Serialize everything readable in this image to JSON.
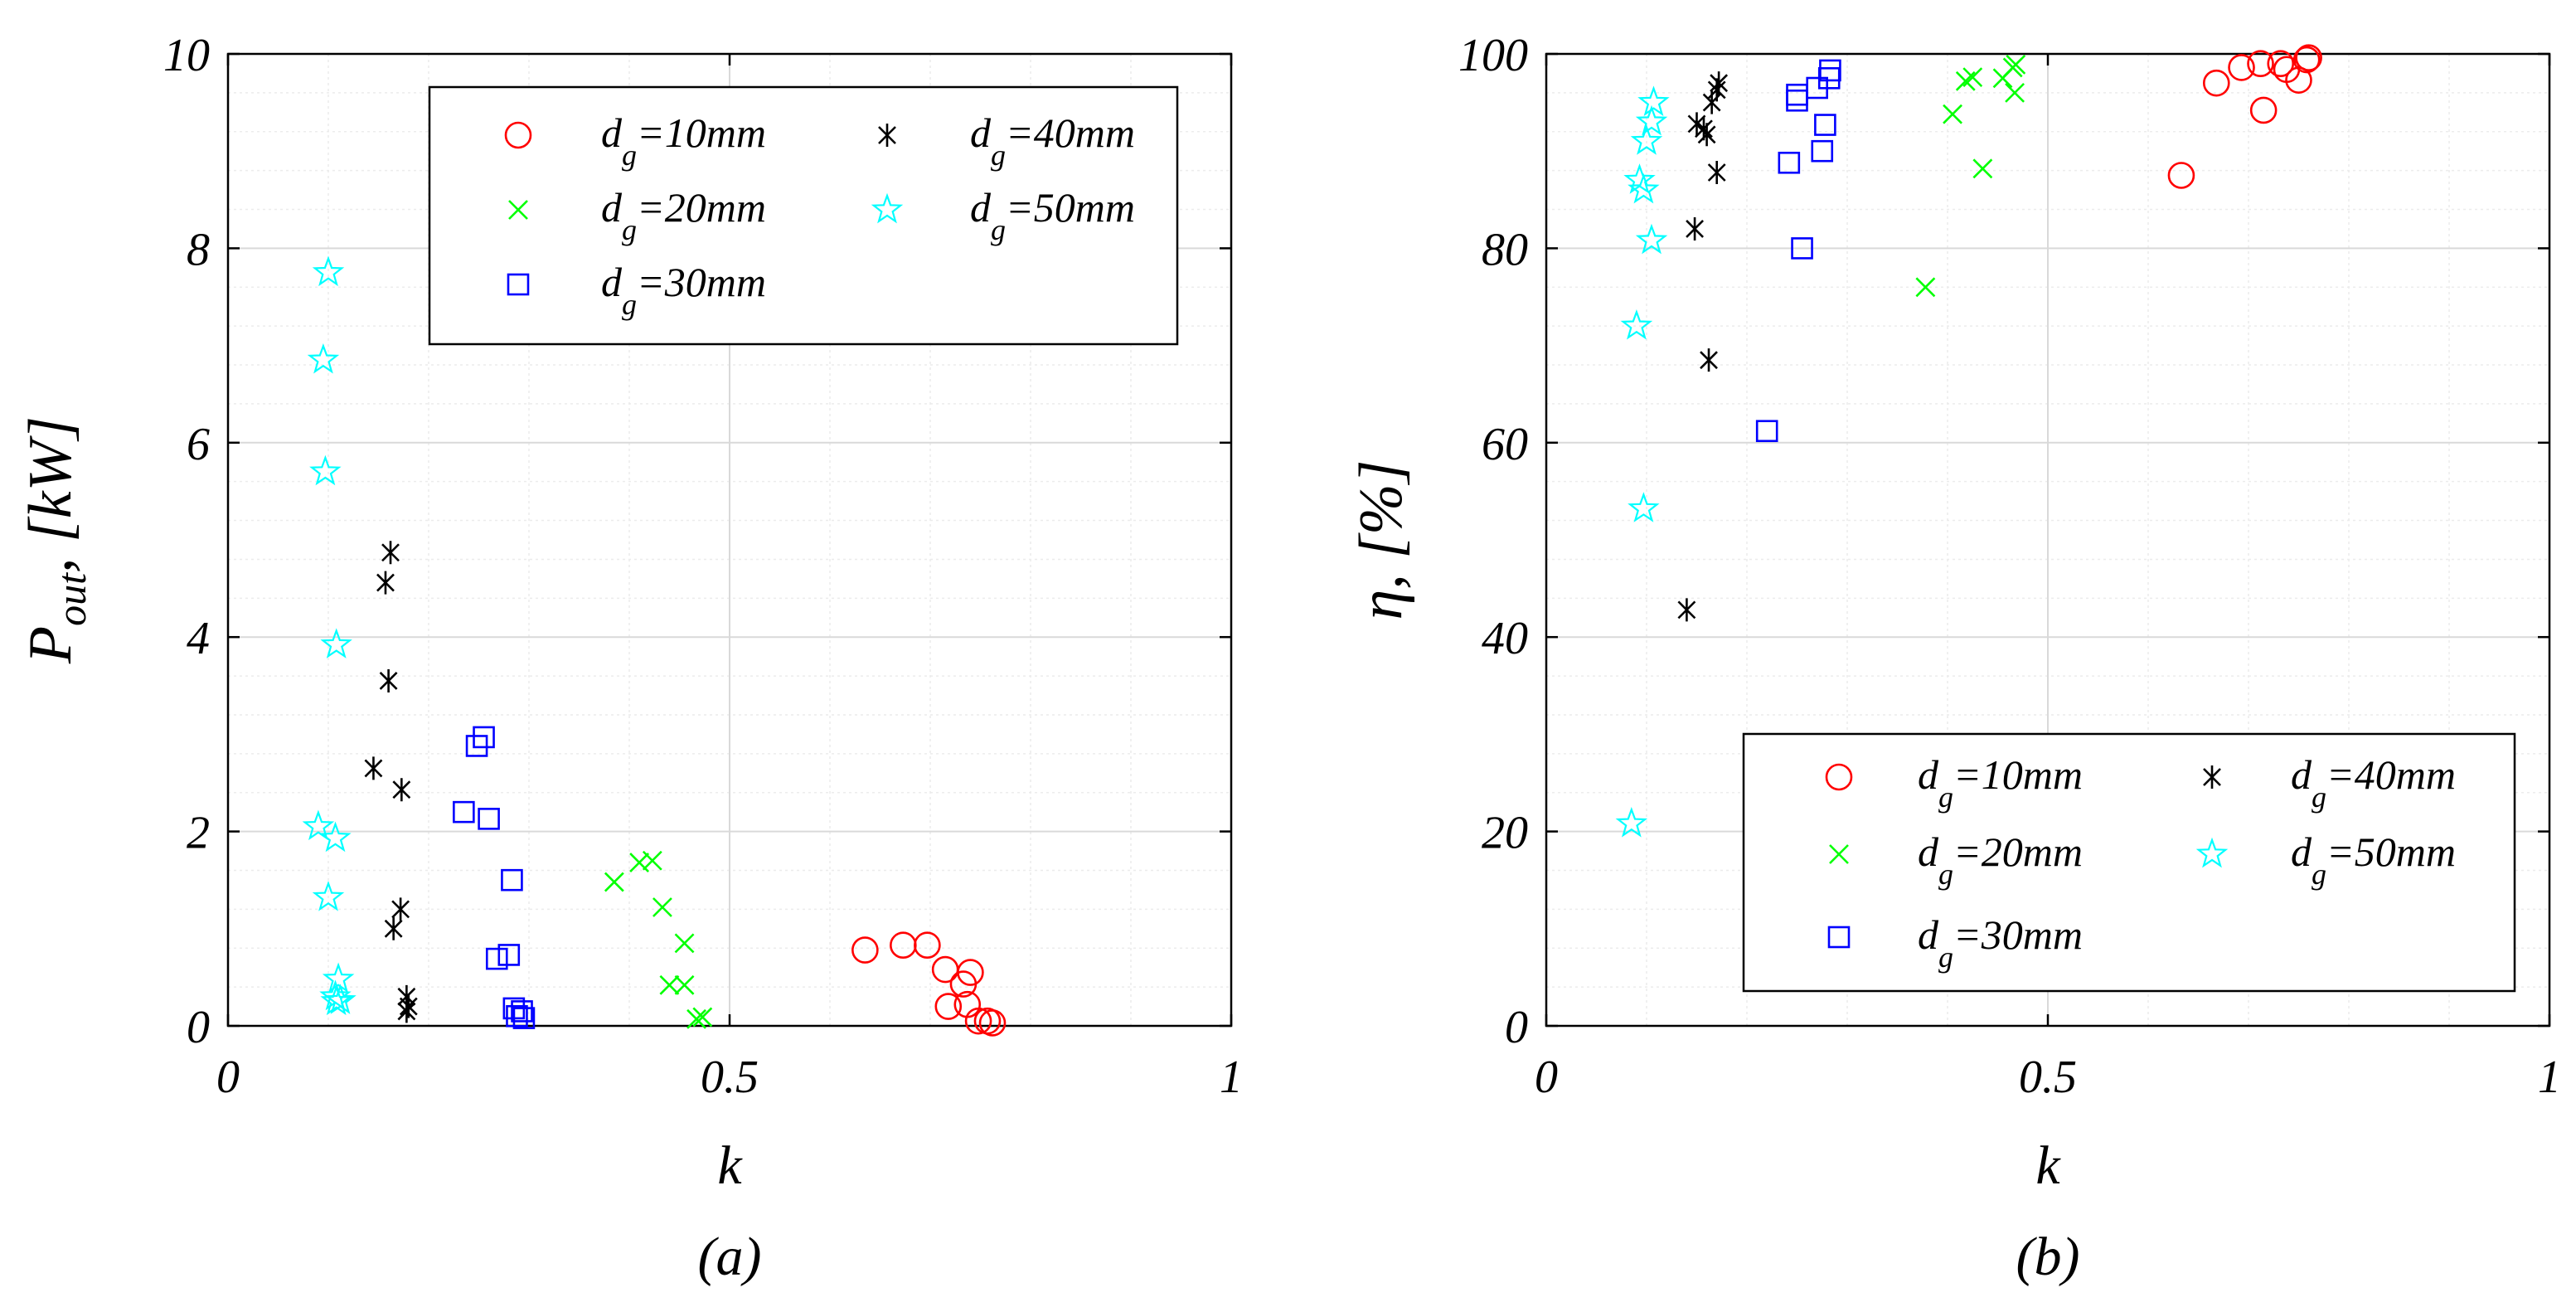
{
  "colors": {
    "d10": "#ff0000",
    "d20": "#00ff00",
    "d30": "#0000ff",
    "d40": "#000000",
    "d50": "#00ffff",
    "grid": "#d9d9d9",
    "axis": "#000000"
  },
  "series_styles": [
    {
      "key": "d10",
      "marker": "circle"
    },
    {
      "key": "d20",
      "marker": "x"
    },
    {
      "key": "d30",
      "marker": "square"
    },
    {
      "key": "d40",
      "marker": "asterisk"
    },
    {
      "key": "d50",
      "marker": "pentagram"
    }
  ],
  "chart_data": [
    {
      "type": "scatter",
      "panel_caption": "(a)",
      "xlabel": "k",
      "ylabel_main": "P",
      "ylabel_sub": "out",
      "ylabel_rest": ", [kW]",
      "xlim": [
        0,
        1
      ],
      "ylim": [
        0,
        10
      ],
      "xticks": [
        0,
        0.5,
        1
      ],
      "yticks": [
        0,
        2,
        4,
        6,
        8,
        10
      ],
      "legend_placement": "top-right",
      "series": [
        {
          "name": "dg=10mm",
          "key": "d10",
          "label_main": "d",
          "label_sub": "g",
          "label_rest": "=10mm",
          "points": [
            [
              0.635,
              0.78
            ],
            [
              0.673,
              0.83
            ],
            [
              0.697,
              0.83
            ],
            [
              0.715,
              0.58
            ],
            [
              0.733,
              0.43
            ],
            [
              0.74,
              0.55
            ],
            [
              0.718,
              0.2
            ],
            [
              0.737,
              0.22
            ],
            [
              0.748,
              0.05
            ],
            [
              0.757,
              0.05
            ],
            [
              0.762,
              0.03
            ]
          ]
        },
        {
          "name": "dg=20mm",
          "key": "d20",
          "label_main": "d",
          "label_sub": "g",
          "label_rest": "=20mm",
          "points": [
            [
              0.385,
              1.48
            ],
            [
              0.41,
              1.68
            ],
            [
              0.423,
              1.7
            ],
            [
              0.433,
              1.22
            ],
            [
              0.455,
              0.85
            ],
            [
              0.44,
              0.42
            ],
            [
              0.455,
              0.42
            ],
            [
              0.467,
              0.07
            ],
            [
              0.473,
              0.09
            ]
          ]
        },
        {
          "name": "dg=30mm",
          "key": "d30",
          "label_main": "d",
          "label_sub": "g",
          "label_rest": "=30mm",
          "points": [
            [
              0.255,
              2.97
            ],
            [
              0.248,
              2.88
            ],
            [
              0.235,
              2.2
            ],
            [
              0.26,
              2.13
            ],
            [
              0.283,
              1.5
            ],
            [
              0.268,
              0.69
            ],
            [
              0.28,
              0.73
            ],
            [
              0.285,
              0.18
            ],
            [
              0.293,
              0.15
            ],
            [
              0.288,
              0.1
            ],
            [
              0.295,
              0.08
            ]
          ]
        },
        {
          "name": "dg=40mm",
          "key": "d40",
          "label_main": "d",
          "label_sub": "g",
          "label_rest": "=40mm",
          "points": [
            [
              0.162,
              4.87
            ],
            [
              0.157,
              4.56
            ],
            [
              0.16,
              3.55
            ],
            [
              0.145,
              2.65
            ],
            [
              0.173,
              2.43
            ],
            [
              0.172,
              1.2
            ],
            [
              0.165,
              1.0
            ],
            [
              0.178,
              0.3
            ],
            [
              0.18,
              0.2
            ],
            [
              0.178,
              0.15
            ]
          ]
        },
        {
          "name": "dg=50mm",
          "key": "d50",
          "label_main": "d",
          "label_sub": "g",
          "label_rest": "=50mm",
          "points": [
            [
              0.1,
              7.75
            ],
            [
              0.095,
              6.85
            ],
            [
              0.097,
              5.7
            ],
            [
              0.108,
              3.92
            ],
            [
              0.09,
              2.05
            ],
            [
              0.107,
              1.93
            ],
            [
              0.1,
              1.32
            ],
            [
              0.11,
              0.48
            ],
            [
              0.107,
              0.3
            ],
            [
              0.112,
              0.26
            ],
            [
              0.108,
              0.25
            ]
          ]
        }
      ]
    },
    {
      "type": "scatter",
      "panel_caption": "(b)",
      "xlabel": "k",
      "ylabel_main": "η",
      "ylabel_sub": "",
      "ylabel_rest": ", [%]",
      "xlim": [
        0,
        1
      ],
      "ylim": [
        0,
        100
      ],
      "xticks": [
        0,
        0.5,
        1
      ],
      "yticks": [
        0,
        20,
        40,
        60,
        80,
        100
      ],
      "legend_placement": "bottom-right",
      "series": [
        {
          "name": "dg=10mm",
          "key": "d10",
          "label_main": "d",
          "label_sub": "g",
          "label_rest": "=10mm",
          "points": [
            [
              0.633,
              87.5
            ],
            [
              0.668,
              97
            ],
            [
              0.693,
              98.6
            ],
            [
              0.712,
              99
            ],
            [
              0.732,
              99
            ],
            [
              0.738,
              98.4
            ],
            [
              0.75,
              97.3
            ],
            [
              0.758,
              99.4
            ],
            [
              0.76,
              99.6
            ],
            [
              0.715,
              94.2
            ]
          ]
        },
        {
          "name": "dg=20mm",
          "key": "d20",
          "label_main": "d",
          "label_sub": "g",
          "label_rest": "=20mm",
          "points": [
            [
              0.378,
              76
            ],
            [
              0.405,
              93.8
            ],
            [
              0.418,
              97.2
            ],
            [
              0.425,
              97.6
            ],
            [
              0.435,
              88.2
            ],
            [
              0.455,
              97.5
            ],
            [
              0.465,
              98.6
            ],
            [
              0.468,
              98.9
            ],
            [
              0.467,
              96
            ]
          ]
        },
        {
          "name": "dg=30mm",
          "key": "d30",
          "label_main": "d",
          "label_sub": "g",
          "label_rest": "=30mm",
          "points": [
            [
              0.22,
              61.2
            ],
            [
              0.255,
              80
            ],
            [
              0.242,
              88.8
            ],
            [
              0.25,
              95.2
            ],
            [
              0.25,
              95.8
            ],
            [
              0.27,
              96.5
            ],
            [
              0.282,
              97.5
            ],
            [
              0.283,
              98.3
            ],
            [
              0.278,
              92.7
            ],
            [
              0.275,
              90
            ]
          ]
        },
        {
          "name": "dg=40mm",
          "key": "d40",
          "label_main": "d",
          "label_sub": "g",
          "label_rest": "=40mm",
          "points": [
            [
              0.14,
              42.8
            ],
            [
              0.162,
              68.5
            ],
            [
              0.148,
              82
            ],
            [
              0.17,
              87.8
            ],
            [
              0.15,
              92.8
            ],
            [
              0.157,
              92.3
            ],
            [
              0.16,
              91.7
            ],
            [
              0.165,
              95
            ],
            [
              0.17,
              96.3
            ],
            [
              0.172,
              97
            ]
          ]
        },
        {
          "name": "dg=50mm",
          "key": "d50",
          "label_main": "d",
          "label_sub": "g",
          "label_rest": "=50mm",
          "points": [
            [
              0.085,
              20.8
            ],
            [
              0.097,
              53.2
            ],
            [
              0.09,
              72
            ],
            [
              0.105,
              80.8
            ],
            [
              0.093,
              87
            ],
            [
              0.097,
              86
            ],
            [
              0.1,
              91
            ],
            [
              0.105,
              93
            ],
            [
              0.107,
              95
            ]
          ]
        }
      ]
    }
  ]
}
